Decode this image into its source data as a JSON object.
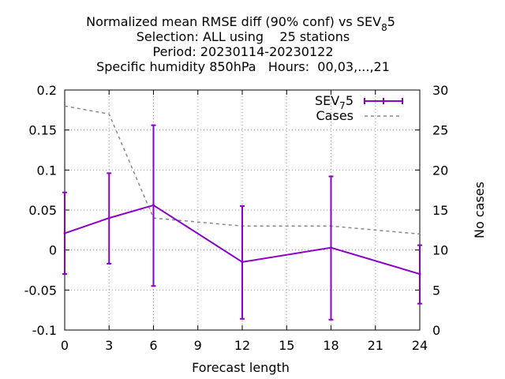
{
  "chart_data": {
    "type": "line",
    "title_lines": [
      "Normalized mean RMSE diff (90% conf) vs SEV",
      "Selection: ALL using    25 stations",
      "Period: 20230114-20230122",
      "Specific humidity 850hPa   Hours:  00,03,...,21"
    ],
    "title_ref_sub": "8",
    "title_ref_tail": "5",
    "xlabel": "Forecast length",
    "ylabel": "",
    "y2label": "No cases",
    "xlim": [
      0,
      24
    ],
    "ylim": [
      -0.1,
      0.2
    ],
    "y2lim": [
      0,
      30
    ],
    "x_ticks": [
      0,
      3,
      6,
      9,
      12,
      15,
      18,
      21,
      24
    ],
    "x_tick_labels": [
      "0",
      "3",
      "6",
      "9",
      "12",
      "15",
      "18",
      "21",
      "24"
    ],
    "y_ticks": [
      -0.1,
      -0.05,
      0,
      0.05,
      0.1,
      0.15,
      0.2
    ],
    "y_tick_labels": [
      "-0.1",
      "-0.05",
      "0",
      "0.05",
      "0.1",
      "0.15",
      "0.2"
    ],
    "y2_ticks": [
      0,
      5,
      10,
      15,
      20,
      25,
      30
    ],
    "y2_tick_labels": [
      "0",
      "5",
      "10",
      "15",
      "20",
      "25",
      "30"
    ],
    "grid": true,
    "legend_position": "top-right",
    "series": [
      {
        "name": "SEV",
        "name_sub": "7",
        "name_tail": "5",
        "color": "#8b00c8",
        "style": "errorbars-line",
        "x": [
          0,
          3,
          6,
          12,
          18,
          24
        ],
        "y": [
          0.021,
          0.04,
          0.056,
          -0.015,
          0.003,
          -0.03
        ],
        "err_low": [
          -0.03,
          -0.017,
          -0.045,
          -0.086,
          -0.087,
          -0.067
        ],
        "err_high": [
          0.072,
          0.096,
          0.156,
          0.055,
          0.092,
          0.006
        ]
      },
      {
        "name": "Cases",
        "color": "#888888",
        "style": "dashed",
        "axis": "y2",
        "x": [
          0,
          3,
          6,
          9,
          12,
          15,
          18,
          21,
          24
        ],
        "y": [
          28,
          27,
          14,
          13.5,
          13,
          13,
          13,
          12.5,
          12
        ]
      }
    ]
  }
}
